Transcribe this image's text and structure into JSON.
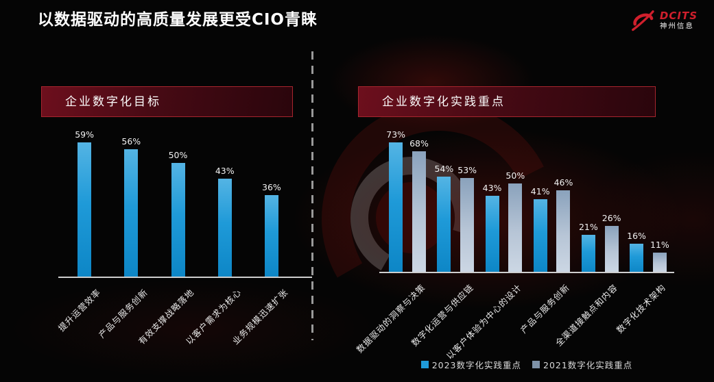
{
  "page": {
    "title": "以数据驱动的高质量发展更受CIO青睐"
  },
  "logo": {
    "brand": "DCITS",
    "company": "神州信息",
    "brand_color": "#d01f2c"
  },
  "divider": {
    "style": "vertical-dashed",
    "color": "#9a9a9a"
  },
  "chart_data": [
    {
      "type": "bar",
      "title": "企业数字化目标",
      "categories": [
        "提升运营效率",
        "产品与服务创新",
        "有效支撑战略落地",
        "以客户需求为核心",
        "业务规模迅速扩张"
      ],
      "values": [
        59,
        56,
        50,
        43,
        36
      ],
      "value_suffix": "%",
      "bar_color": "#1f9ad8",
      "data_labels": true,
      "grid": false,
      "y_axis_visible": false,
      "x_axis_line_color": "#cfcfcf",
      "category_label_rotation_deg": -45
    },
    {
      "type": "bar",
      "title": "企业数字化实践重点",
      "categories": [
        "数据驱动的洞察与决策",
        "数字化运营与供应链",
        "以客户体验为中心的设计",
        "产品与服务创新",
        "全渠道接触点和内容",
        "数字化技术架构"
      ],
      "series": [
        {
          "name": "2023数字化实践重点",
          "values": [
            73,
            54,
            43,
            41,
            21,
            16
          ],
          "color": "#1f9ad8"
        },
        {
          "name": "2021数字化实践重点",
          "values": [
            68,
            53,
            50,
            46,
            26,
            11
          ],
          "color": "#93a7bd"
        }
      ],
      "value_suffix": "%",
      "data_labels": true,
      "grid": false,
      "y_axis_visible": false,
      "x_axis_line_color": "#cfcfcf",
      "category_label_rotation_deg": -45,
      "legend_position": "bottom"
    }
  ],
  "legend": {
    "items": [
      {
        "label": "2023数字化实践重点",
        "color": "#1f9ad8"
      },
      {
        "label": "2021数字化实践重点",
        "color": "#7e92a8"
      }
    ]
  },
  "theme": {
    "background": "#050505",
    "accent_red": "#a8252e",
    "header_gradient_start": "#6d0f1d",
    "text_color": "#f2f2f2"
  }
}
